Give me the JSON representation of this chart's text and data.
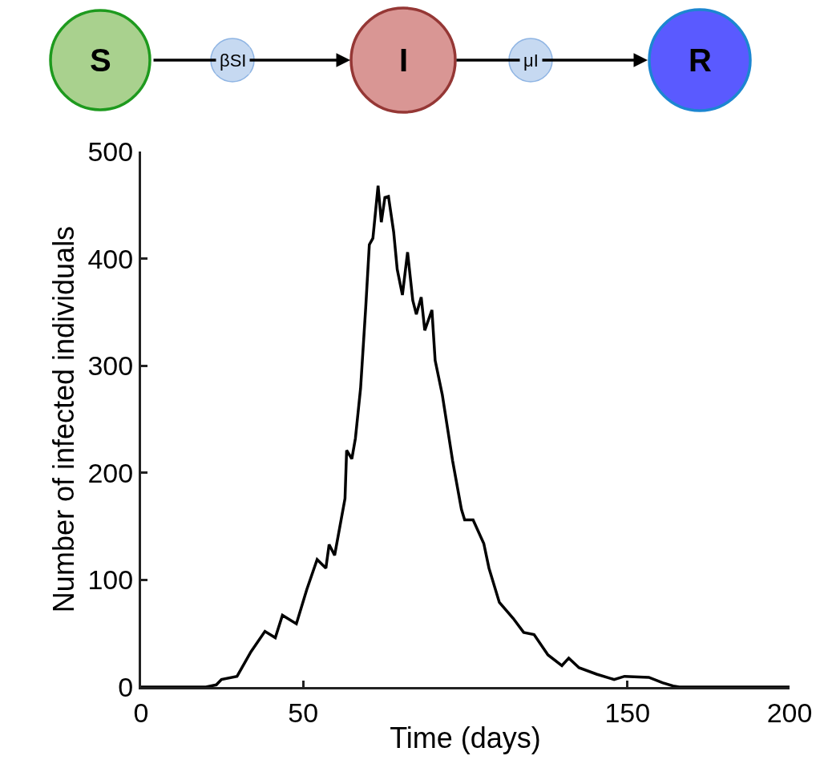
{
  "chart_data": {
    "type": "line",
    "xlabel": "Time (days)",
    "ylabel": "Number of infected individuals",
    "annotations": [
      "S",
      "βSI",
      "I",
      "μI",
      "R"
    ],
    "series": [
      {
        "color": "#000000",
        "x": [
          0,
          20,
          23.2,
          24.8,
          29.6,
          33.9,
          38.2,
          41.4,
          43.6,
          47.9,
          51.1,
          54.3,
          57.0,
          58.0,
          59.7,
          62.9,
          63.4,
          65.0,
          66.1,
          67.7,
          69.3,
          70.4,
          71.5,
          73.1,
          74.1,
          75.2,
          76.3,
          77.9,
          79.0,
          80.6,
          82.2,
          83.8,
          84.9,
          86.4,
          87.5,
          89.7,
          90.7,
          92.9,
          96.1,
          98.8,
          99.8,
          102.4,
          105.7,
          107.3,
          110.5,
          114.8,
          118.0,
          121.2,
          125.5,
          129.8,
          131.9,
          135.1,
          140.5,
          145.9,
          149.1,
          156.6,
          160.8,
          164.1,
          166,
          200
        ],
        "values": [
          0,
          0,
          2,
          7,
          10,
          33,
          52,
          46,
          67,
          59,
          91,
          119,
          111,
          133,
          123,
          176,
          221,
          213,
          232,
          279,
          355,
          413,
          419,
          468,
          434,
          457,
          458,
          425,
          390,
          366,
          406,
          361,
          348,
          364,
          333,
          352,
          305,
          273,
          211,
          166,
          156,
          156,
          134,
          111,
          79,
          64,
          51,
          49,
          30,
          20,
          27,
          18,
          12,
          7,
          10,
          9,
          4,
          1,
          0,
          0
        ]
      }
    ],
    "xlim": [
      0,
      200
    ],
    "xticks": [
      0,
      50,
      150,
      200
    ],
    "ylim": [
      0,
      500
    ],
    "yticks": [
      0,
      100,
      200,
      300,
      400,
      500
    ],
    "legend": false,
    "marker": "none",
    "line_style": "solid"
  }
}
